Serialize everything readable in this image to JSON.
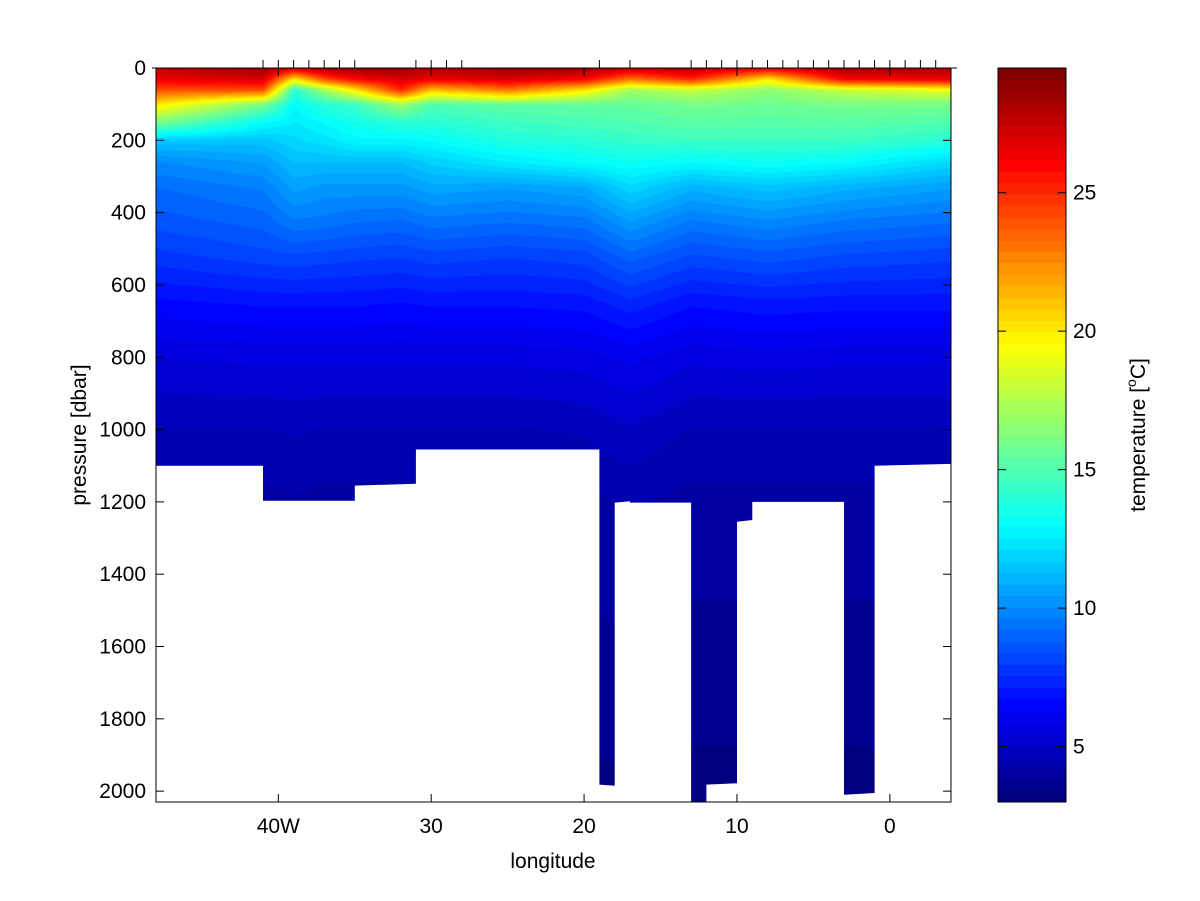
{
  "chart_data": {
    "type": "heatmap",
    "title": "",
    "xlabel": "longitude",
    "ylabel": "pressure [dbar]",
    "colorbar_label_main": "temperature [",
    "colorbar_label_sup": "o",
    "colorbar_label_end": "C]",
    "x_direction": "decreasing west to east (values are degrees West)",
    "xlim": [
      48,
      -4
    ],
    "ylim": [
      2030,
      0
    ],
    "y_reversed": true,
    "grid": false,
    "colormap": "jet",
    "clim": [
      3,
      29.5
    ],
    "x_ticks": [
      {
        "value": 40,
        "label": "40W"
      },
      {
        "value": 30,
        "label": "30"
      },
      {
        "value": 20,
        "label": "20"
      },
      {
        "value": 10,
        "label": "10"
      },
      {
        "value": 0,
        "label": "0"
      }
    ],
    "y_ticks": [
      {
        "value": 0,
        "label": "0"
      },
      {
        "value": 200,
        "label": "200"
      },
      {
        "value": 400,
        "label": "400"
      },
      {
        "value": 600,
        "label": "600"
      },
      {
        "value": 800,
        "label": "800"
      },
      {
        "value": 1000,
        "label": "1000"
      },
      {
        "value": 1200,
        "label": "1200"
      },
      {
        "value": 1400,
        "label": "1400"
      },
      {
        "value": 1600,
        "label": "1600"
      },
      {
        "value": 1800,
        "label": "1800"
      },
      {
        "value": 2000,
        "label": "2000"
      }
    ],
    "colorbar_ticks": [
      {
        "value": 5,
        "label": "5"
      },
      {
        "value": 10,
        "label": "10"
      },
      {
        "value": 15,
        "label": "15"
      },
      {
        "value": 20,
        "label": "20"
      },
      {
        "value": 25,
        "label": "25"
      }
    ],
    "station_longitudes": [
      41,
      40,
      39,
      38,
      37,
      36,
      35,
      31,
      30,
      29,
      28,
      19,
      17,
      13,
      12,
      11,
      10,
      9,
      8,
      7,
      6,
      5,
      4,
      3,
      2,
      1,
      0,
      -1,
      -2,
      -3
    ],
    "bottom_profile": {
      "lon": [
        48,
        41,
        41,
        35,
        35,
        31,
        31,
        19,
        19,
        18,
        18,
        17,
        17,
        13,
        13,
        12,
        12,
        10,
        10,
        9,
        9,
        3,
        3,
        1,
        1,
        -4
      ],
      "depth": [
        1100,
        1100,
        1197,
        1197,
        1155,
        1150,
        1055,
        1055,
        1982,
        1985,
        1202,
        1198,
        1202,
        1202,
        2035,
        2030,
        1982,
        1978,
        1255,
        1250,
        1200,
        1200,
        2010,
        2005,
        1100,
        1095
      ]
    },
    "temperature_profiles": {
      "depth": [
        0,
        30,
        60,
        100,
        150,
        200,
        260,
        330,
        420,
        520,
        650,
        800,
        1000,
        1200,
        1500,
        1800,
        2050
      ],
      "profiles": [
        {
          "lon": 48,
          "values": [
            27.5,
            26.5,
            24,
            20,
            16,
            11.5,
            10,
            9.2,
            8.6,
            7.8,
            6.6,
            5.5,
            4.6,
            4.1,
            3.8,
            3.5,
            3.3
          ]
        },
        {
          "lon": 41,
          "values": [
            28.5,
            27,
            24,
            16,
            13,
            11.5,
            10.5,
            9.7,
            9,
            8.2,
            6.8,
            5.6,
            4.6,
            4.1,
            3.8,
            3.5,
            3.3
          ]
        },
        {
          "lon": 39,
          "values": [
            27,
            20,
            14,
            13,
            12.5,
            12,
            11.3,
            10.6,
            9.6,
            8.3,
            6.8,
            5.6,
            4.7,
            4.2,
            3.8,
            3.5,
            3.3
          ]
        },
        {
          "lon": 37,
          "values": [
            28.5,
            24,
            17,
            14,
            13,
            12.3,
            11.3,
            10.3,
            9.5,
            8.2,
            6.8,
            5.6,
            4.6,
            4.1,
            3.8,
            3.5,
            3.3
          ]
        },
        {
          "lon": 35,
          "values": [
            28.5,
            26,
            20,
            14.5,
            13.5,
            12.8,
            11.3,
            10.3,
            9.3,
            8.1,
            6.8,
            5.6,
            4.6,
            4.1,
            3.8,
            3.5,
            3.3
          ]
        },
        {
          "lon": 32,
          "values": [
            28.5,
            27,
            25,
            17,
            14,
            12.8,
            11.3,
            10.3,
            9.2,
            8,
            6.7,
            5.6,
            4.6,
            4.1,
            3.8,
            3.5,
            3.3
          ]
        },
        {
          "lon": 30,
          "values": [
            28,
            26.5,
            21,
            15,
            14,
            13,
            11.8,
            10.7,
            9.5,
            8.2,
            6.8,
            5.6,
            4.6,
            4.1,
            3.8,
            3.5,
            3.3
          ]
        },
        {
          "lon": 25,
          "values": [
            28.5,
            27,
            23,
            15.5,
            14.5,
            13.8,
            12.5,
            10.5,
            9.3,
            8,
            6.8,
            5.6,
            4.6,
            4.1,
            3.8,
            3.5,
            3.3
          ]
        },
        {
          "lon": 20,
          "values": [
            28.5,
            26,
            20,
            15.5,
            14.8,
            14,
            13,
            10.8,
            9.5,
            8.2,
            6.9,
            5.7,
            4.7,
            4.1,
            3.8,
            3.5,
            3.3
          ]
        },
        {
          "lon": 17,
          "values": [
            27.5,
            23,
            17,
            15.5,
            15,
            14.3,
            13.3,
            12,
            10.5,
            9,
            7.4,
            6,
            5,
            4.3,
            3.9,
            3.6,
            3.2
          ]
        },
        {
          "lon": 13,
          "values": [
            28,
            25,
            18,
            16,
            15.3,
            14.5,
            13,
            11,
            9.6,
            8.3,
            6.8,
            5.6,
            4.6,
            4.1,
            3.8,
            3.5,
            3.2
          ]
        },
        {
          "lon": 8,
          "values": [
            26.5,
            20,
            16.5,
            15.8,
            15.2,
            14.5,
            13.3,
            11.5,
            10,
            8.6,
            7,
            5.7,
            4.6,
            4.1,
            3.8,
            3.5,
            3.2
          ]
        },
        {
          "lon": 3,
          "values": [
            28.5,
            26,
            18,
            16,
            15.3,
            14.5,
            13,
            11,
            9.6,
            8.3,
            6.9,
            5.6,
            4.6,
            4.1,
            3.8,
            3.5,
            3.2
          ]
        },
        {
          "lon": -4,
          "values": [
            28,
            26.5,
            19,
            16,
            15,
            14,
            12,
            10.5,
            9.3,
            8.1,
            6.9,
            5.6,
            4.6,
            4.1,
            3.8,
            3.5,
            3.3
          ]
        }
      ]
    }
  }
}
